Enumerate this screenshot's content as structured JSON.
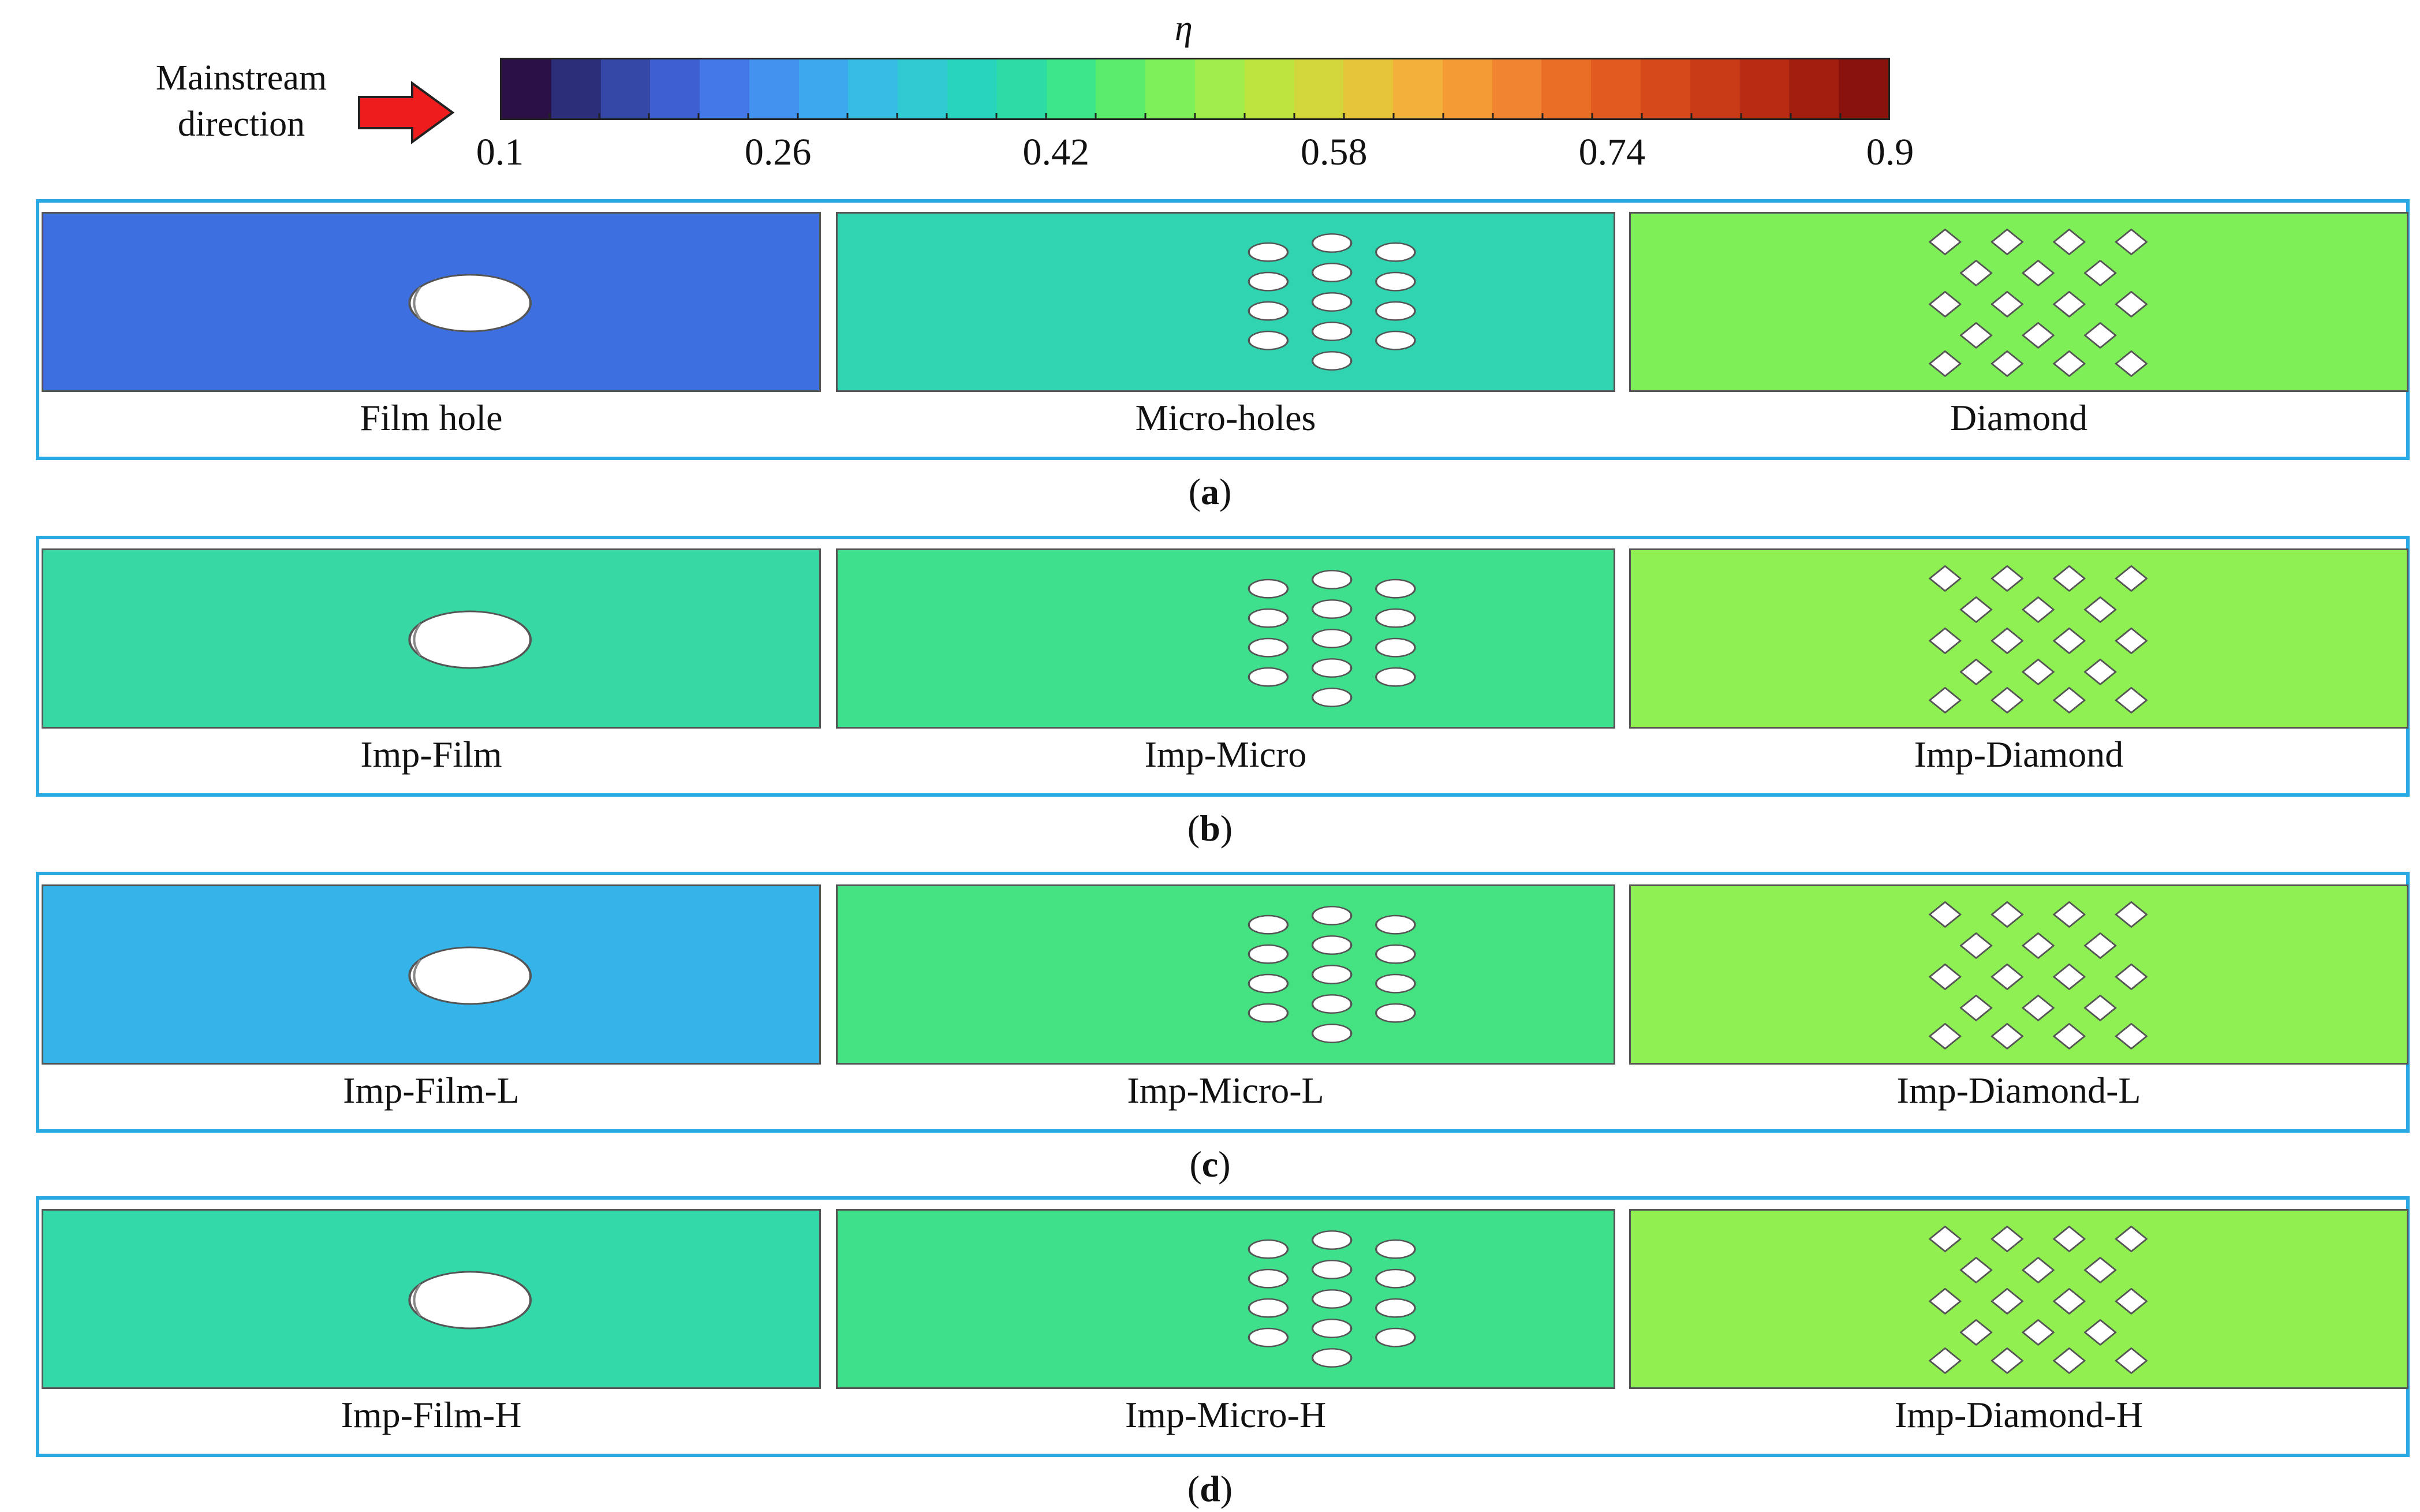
{
  "legend": {
    "flow_label_line1": "Mainstream",
    "flow_label_line2": "direction",
    "arrow_color": "#ee1c1c",
    "colorbar_symbol": "η",
    "colorbar_ticks": [
      "0.1",
      "0.26",
      "0.42",
      "0.58",
      "0.74",
      "0.9"
    ],
    "colorbar_range": [
      0.1,
      0.9
    ],
    "colormap": [
      "#2a1045",
      "#2c2e7a",
      "#3548a8",
      "#3d5fd0",
      "#4478e8",
      "#4392f0",
      "#3ea8ef",
      "#37bce4",
      "#2fcad2",
      "#29d4bc",
      "#2ddca4",
      "#3ce48a",
      "#5aec6c",
      "#7df05a",
      "#a0ed4c",
      "#bde43f",
      "#d3d63a",
      "#e6c53a",
      "#f1b13a",
      "#f59b36",
      "#f08430",
      "#e96e26",
      "#e15a1f",
      "#d6491b",
      "#c93a17",
      "#b82c13",
      "#a21f10",
      "#8a120c"
    ]
  },
  "panels": [
    {
      "letter": "a",
      "cases": [
        {
          "label": "Film hole",
          "type": "film",
          "bands": [
            "#3d6fe0",
            "#44a0f5",
            "#36b6ea",
            "#2fc8d8",
            "#29d3c3",
            "#2dd8b4",
            "#2ed7bd",
            "#2ed6be"
          ]
        },
        {
          "label": "Micro-holes",
          "type": "micro",
          "bands": [
            "#31d4b0",
            "#5cea6e",
            "#a4ec4a",
            "#e5c83c",
            "#f19a35",
            "#ea6f27",
            "#e85b1f",
            "#e5561d"
          ]
        },
        {
          "label": "Diamond",
          "type": "diamond",
          "bands": [
            "#7fef57",
            "#c9dc3b",
            "#f0b03a",
            "#ee7c2b",
            "#d8461a",
            "#d8461a",
            "#e15a1f",
            "#e5561d"
          ]
        }
      ]
    },
    {
      "letter": "b",
      "cases": [
        {
          "label": "Imp-Film",
          "type": "film",
          "bands": [
            "#37d8a4",
            "#5ae874",
            "#8ef04f",
            "#b5e642",
            "#cfd83c",
            "#cbdc3c",
            "#b9e242",
            "#a9e646"
          ]
        },
        {
          "label": "Imp-Micro",
          "type": "micro",
          "bands": [
            "#3ee08e",
            "#8ef050",
            "#d9d13a",
            "#f3a836",
            "#e6621f",
            "#c93a17",
            "#d34418",
            "#d94c1b"
          ]
        },
        {
          "label": "Imp-Diamond",
          "type": "diamond",
          "bands": [
            "#8ff052",
            "#d5d33a",
            "#f0ac38",
            "#e96f26",
            "#c93a17",
            "#a82412",
            "#b82c13",
            "#c73816"
          ]
        }
      ]
    },
    {
      "letter": "c",
      "cases": [
        {
          "label": "Imp-Film-L",
          "type": "film",
          "bands": [
            "#35b4ea",
            "#2fcad4",
            "#2bd6bc",
            "#37df9a",
            "#6aed62",
            "#7ef059",
            "#52e874",
            "#3be38e"
          ]
        },
        {
          "label": "Imp-Micro-L",
          "type": "micro",
          "bands": [
            "#44e280",
            "#9af04d",
            "#dcce3a",
            "#f2a236",
            "#e86a24",
            "#e0561d",
            "#e5581e",
            "#e85c20"
          ]
        },
        {
          "label": "Imp-Diamond-L",
          "type": "diamond",
          "bands": [
            "#8ef052",
            "#d4d43a",
            "#f0ab38",
            "#ea7027",
            "#cd3e17",
            "#c13514",
            "#d44718",
            "#de5120"
          ]
        }
      ]
    },
    {
      "letter": "d",
      "cases": [
        {
          "label": "Imp-Film-H",
          "type": "film",
          "bands": [
            "#33d9a8",
            "#61e96c",
            "#a4ec4a",
            "#c9dd3c",
            "#e9c13a",
            "#dcd23a",
            "#cbdc3c",
            "#b8e242"
          ]
        },
        {
          "label": "Imp-Micro-H",
          "type": "micro",
          "bands": [
            "#3fe08c",
            "#92f04e",
            "#dbcf3a",
            "#f3a536",
            "#e6621f",
            "#c63816",
            "#cf4017",
            "#d84a1a"
          ]
        },
        {
          "label": "Imp-Diamond-H",
          "type": "diamond",
          "bands": [
            "#91f050",
            "#d6d23a",
            "#f1aa38",
            "#e96c26",
            "#c43716",
            "#a01f10",
            "#b22a13",
            "#c53615"
          ]
        }
      ]
    }
  ]
}
